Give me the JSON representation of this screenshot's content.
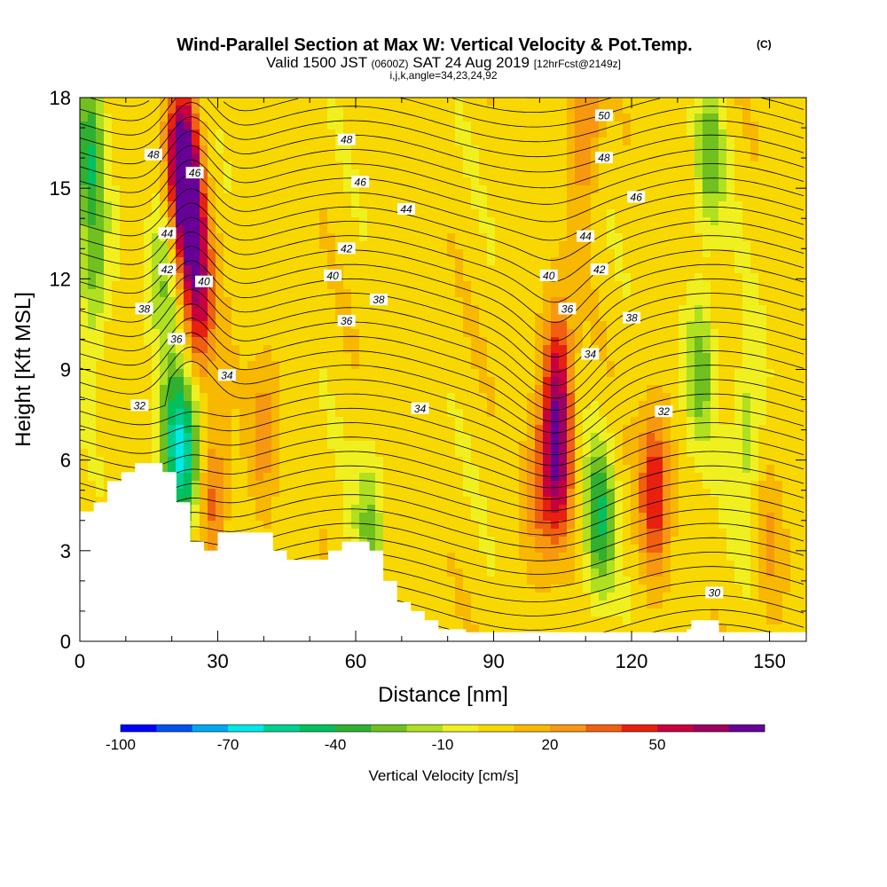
{
  "title": "Wind-Parallel Section at Max W: Vertical Velocity & Pot.Temp.",
  "title_mark": "(C)",
  "subtitle": {
    "valid": "Valid 1500 JST",
    "utc": "(0600Z)",
    "date": "SAT 24 Aug 2019",
    "forecast": "[12hrFcst@2149z]"
  },
  "subtitle2": "i,j,k,angle=34,23,24,92",
  "chart_data": {
    "type": "heatmap",
    "xlabel": "Distance [nm]",
    "ylabel": "Height [Kft MSL]",
    "xlim": [
      0,
      158
    ],
    "ylim": [
      0,
      18
    ],
    "xticks": [
      "0",
      "30",
      "60",
      "90",
      "120",
      "150"
    ],
    "yticks": [
      "0",
      "3",
      "6",
      "9",
      "12",
      "15",
      "18"
    ],
    "fill_variable": "Vertical Velocity [cm/s]",
    "contour_variable": "Potential temperature",
    "colorbar": {
      "label": "Vertical Velocity [cm/s]",
      "tick_labels": [
        "-100",
        "-70",
        "-40",
        "-10",
        "20",
        "50"
      ],
      "tick_values": [
        -100,
        -70,
        -40,
        -10,
        20,
        50
      ],
      "bins": [
        -100,
        -90,
        -80,
        -70,
        -60,
        -50,
        -40,
        -30,
        -20,
        -10,
        0,
        10,
        20,
        30,
        40,
        50,
        60,
        70
      ],
      "colors": [
        "#0000ff",
        "#0050f0",
        "#00a8f0",
        "#00e8e8",
        "#00d090",
        "#00c060",
        "#30b030",
        "#70c020",
        "#b0e020",
        "#f0f020",
        "#f8d800",
        "#f8b800",
        "#f89810",
        "#f06010",
        "#e82010",
        "#c80040",
        "#a00060",
        "#680098"
      ]
    },
    "field_points": [
      {
        "x": 2,
        "z": 16,
        "w": -40
      },
      {
        "x": 3,
        "z": 12,
        "w": -30
      },
      {
        "x": 18,
        "z": 12,
        "w": -25
      },
      {
        "x": 22,
        "z": 16,
        "w": 65
      },
      {
        "x": 24,
        "z": 14,
        "w": 60
      },
      {
        "x": 26,
        "z": 11,
        "w": 45
      },
      {
        "x": 20,
        "z": 7,
        "w": -40
      },
      {
        "x": 23,
        "z": 6,
        "w": -55
      },
      {
        "x": 29,
        "z": 5,
        "w": 30
      },
      {
        "x": 40,
        "z": 7,
        "w": 20
      },
      {
        "x": 63,
        "z": 4,
        "w": -25
      },
      {
        "x": 104,
        "z": 6,
        "w": 55
      },
      {
        "x": 104,
        "z": 9,
        "w": 40
      },
      {
        "x": 100,
        "z": 5,
        "w": 25
      },
      {
        "x": 113,
        "z": 4,
        "w": -45
      },
      {
        "x": 125,
        "z": 5,
        "w": 45
      },
      {
        "x": 110,
        "z": 17,
        "w": 30
      },
      {
        "x": 137,
        "z": 16,
        "w": -30
      },
      {
        "x": 135,
        "z": 9,
        "w": -30
      },
      {
        "x": 145,
        "z": 7,
        "w": -25
      },
      {
        "x": 150,
        "z": 3,
        "w": 15
      }
    ],
    "terrain_top": [
      {
        "x": 0,
        "z": 4.3
      },
      {
        "x": 3,
        "z": 4.3
      },
      {
        "x": 3,
        "z": 4.6
      },
      {
        "x": 6,
        "z": 4.6
      },
      {
        "x": 6,
        "z": 5.3
      },
      {
        "x": 9,
        "z": 5.3
      },
      {
        "x": 9,
        "z": 5.6
      },
      {
        "x": 12,
        "z": 5.6
      },
      {
        "x": 12,
        "z": 5.9
      },
      {
        "x": 18,
        "z": 5.9
      },
      {
        "x": 18,
        "z": 5.6
      },
      {
        "x": 21,
        "z": 5.6
      },
      {
        "x": 21,
        "z": 4.6
      },
      {
        "x": 24,
        "z": 4.6
      },
      {
        "x": 24,
        "z": 3.3
      },
      {
        "x": 27,
        "z": 3.3
      },
      {
        "x": 27,
        "z": 3.0
      },
      {
        "x": 30,
        "z": 3.0
      },
      {
        "x": 30,
        "z": 3.6
      },
      {
        "x": 42,
        "z": 3.6
      },
      {
        "x": 42,
        "z": 3.0
      },
      {
        "x": 45,
        "z": 3.0
      },
      {
        "x": 45,
        "z": 2.7
      },
      {
        "x": 54,
        "z": 2.7
      },
      {
        "x": 54,
        "z": 3.0
      },
      {
        "x": 57,
        "z": 3.0
      },
      {
        "x": 57,
        "z": 3.3
      },
      {
        "x": 63,
        "z": 3.3
      },
      {
        "x": 63,
        "z": 3.0
      },
      {
        "x": 66,
        "z": 3.0
      },
      {
        "x": 66,
        "z": 2.0
      },
      {
        "x": 69,
        "z": 2.0
      },
      {
        "x": 69,
        "z": 1.3
      },
      {
        "x": 72,
        "z": 1.3
      },
      {
        "x": 72,
        "z": 1.0
      },
      {
        "x": 75,
        "z": 1.0
      },
      {
        "x": 75,
        "z": 0.7
      },
      {
        "x": 78,
        "z": 0.7
      },
      {
        "x": 78,
        "z": 0.4
      },
      {
        "x": 84,
        "z": 0.4
      },
      {
        "x": 84,
        "z": 0.3
      },
      {
        "x": 132,
        "z": 0.3
      },
      {
        "x": 132,
        "z": 0.4
      },
      {
        "x": 133,
        "z": 0.4
      },
      {
        "x": 133,
        "z": 0.7
      },
      {
        "x": 139,
        "z": 0.7
      },
      {
        "x": 139,
        "z": 0.3
      },
      {
        "x": 158,
        "z": 0.3
      }
    ],
    "contour_labels": [
      {
        "text": "50",
        "x": 114,
        "z": 17.4
      },
      {
        "text": "48",
        "x": 16,
        "z": 16.1
      },
      {
        "text": "48",
        "x": 58,
        "z": 16.6
      },
      {
        "text": "48",
        "x": 114,
        "z": 16.0
      },
      {
        "text": "46",
        "x": 25,
        "z": 15.5
      },
      {
        "text": "46",
        "x": 61,
        "z": 15.2
      },
      {
        "text": "46",
        "x": 121,
        "z": 14.7
      },
      {
        "text": "44",
        "x": 19,
        "z": 13.5
      },
      {
        "text": "44",
        "x": 71,
        "z": 14.3
      },
      {
        "text": "44",
        "x": 110,
        "z": 13.4
      },
      {
        "text": "42",
        "x": 19,
        "z": 12.3
      },
      {
        "text": "42",
        "x": 58,
        "z": 13.0
      },
      {
        "text": "42",
        "x": 113,
        "z": 12.3
      },
      {
        "text": "40",
        "x": 27,
        "z": 11.9
      },
      {
        "text": "40",
        "x": 55,
        "z": 12.1
      },
      {
        "text": "40",
        "x": 102,
        "z": 12.1
      },
      {
        "text": "38",
        "x": 14,
        "z": 11.0
      },
      {
        "text": "38",
        "x": 65,
        "z": 11.3
      },
      {
        "text": "38",
        "x": 120,
        "z": 10.7
      },
      {
        "text": "36",
        "x": 21,
        "z": 10.0
      },
      {
        "text": "36",
        "x": 58,
        "z": 10.6
      },
      {
        "text": "36",
        "x": 106,
        "z": 11.0
      },
      {
        "text": "34",
        "x": 32,
        "z": 8.8
      },
      {
        "text": "34",
        "x": 74,
        "z": 7.7
      },
      {
        "text": "34",
        "x": 111,
        "z": 9.5
      },
      {
        "text": "32",
        "x": 13,
        "z": 7.8
      },
      {
        "text": "32",
        "x": 127,
        "z": 7.6
      },
      {
        "text": "30",
        "x": 138,
        "z": 1.6
      }
    ]
  }
}
